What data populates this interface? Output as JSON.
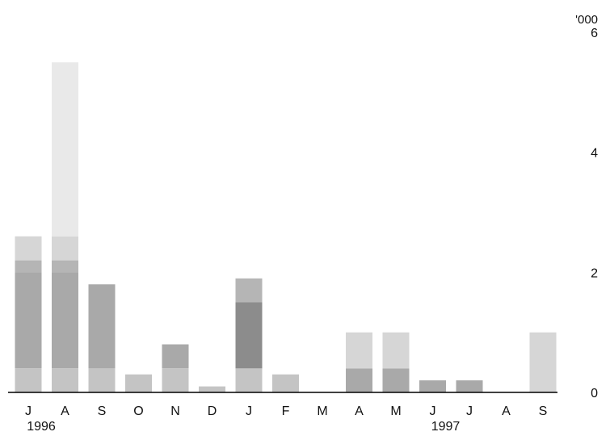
{
  "chart_data": {
    "type": "bar",
    "stacked": true,
    "categories": [
      "J",
      "A",
      "S",
      "O",
      "N",
      "D",
      "J",
      "F",
      "M",
      "A",
      "M",
      "J",
      "J",
      "A",
      "S"
    ],
    "year_labels": [
      {
        "label": "1996",
        "category_index": 0
      },
      {
        "label": "1997",
        "category_index": 11
      }
    ],
    "series": [
      {
        "color": "#c4c4c4",
        "values": [
          0.4,
          0.4,
          0.4,
          0.3,
          0.4,
          0.1,
          0.4,
          0.3,
          0.0,
          0.0,
          0.0,
          0.0,
          0.0,
          0.0,
          0.0
        ]
      },
      {
        "color": "#a9a9a9",
        "values": [
          1.6,
          1.6,
          1.4,
          0.0,
          0.4,
          0.0,
          0.0,
          0.0,
          0.0,
          0.4,
          0.4,
          0.2,
          0.2,
          0.0,
          0.0
        ]
      },
      {
        "color": "#8c8c8c",
        "values": [
          0.0,
          0.0,
          0.0,
          0.0,
          0.0,
          0.0,
          1.1,
          0.0,
          0.0,
          0.0,
          0.0,
          0.0,
          0.0,
          0.0,
          0.0
        ]
      },
      {
        "color": "#b5b5b5",
        "values": [
          0.2,
          0.2,
          0.0,
          0.0,
          0.0,
          0.0,
          0.4,
          0.0,
          0.0,
          0.0,
          0.0,
          0.0,
          0.0,
          0.0,
          0.0
        ]
      },
      {
        "color": "#d6d6d6",
        "values": [
          0.4,
          0.4,
          0.0,
          0.0,
          0.0,
          0.0,
          0.0,
          0.0,
          0.0,
          0.6,
          0.6,
          0.0,
          0.0,
          0.0,
          1.0
        ]
      },
      {
        "color": "#e9e9e9",
        "values": [
          0.0,
          2.9,
          0.0,
          0.0,
          0.0,
          0.0,
          0.0,
          0.0,
          0.0,
          0.0,
          0.0,
          0.0,
          0.0,
          0.0,
          0.0
        ]
      }
    ],
    "y_unit": "'000",
    "yticks": [
      0,
      2,
      4,
      6
    ],
    "ylim": [
      0,
      6
    ],
    "y_axis_side": "right",
    "grid": false
  }
}
